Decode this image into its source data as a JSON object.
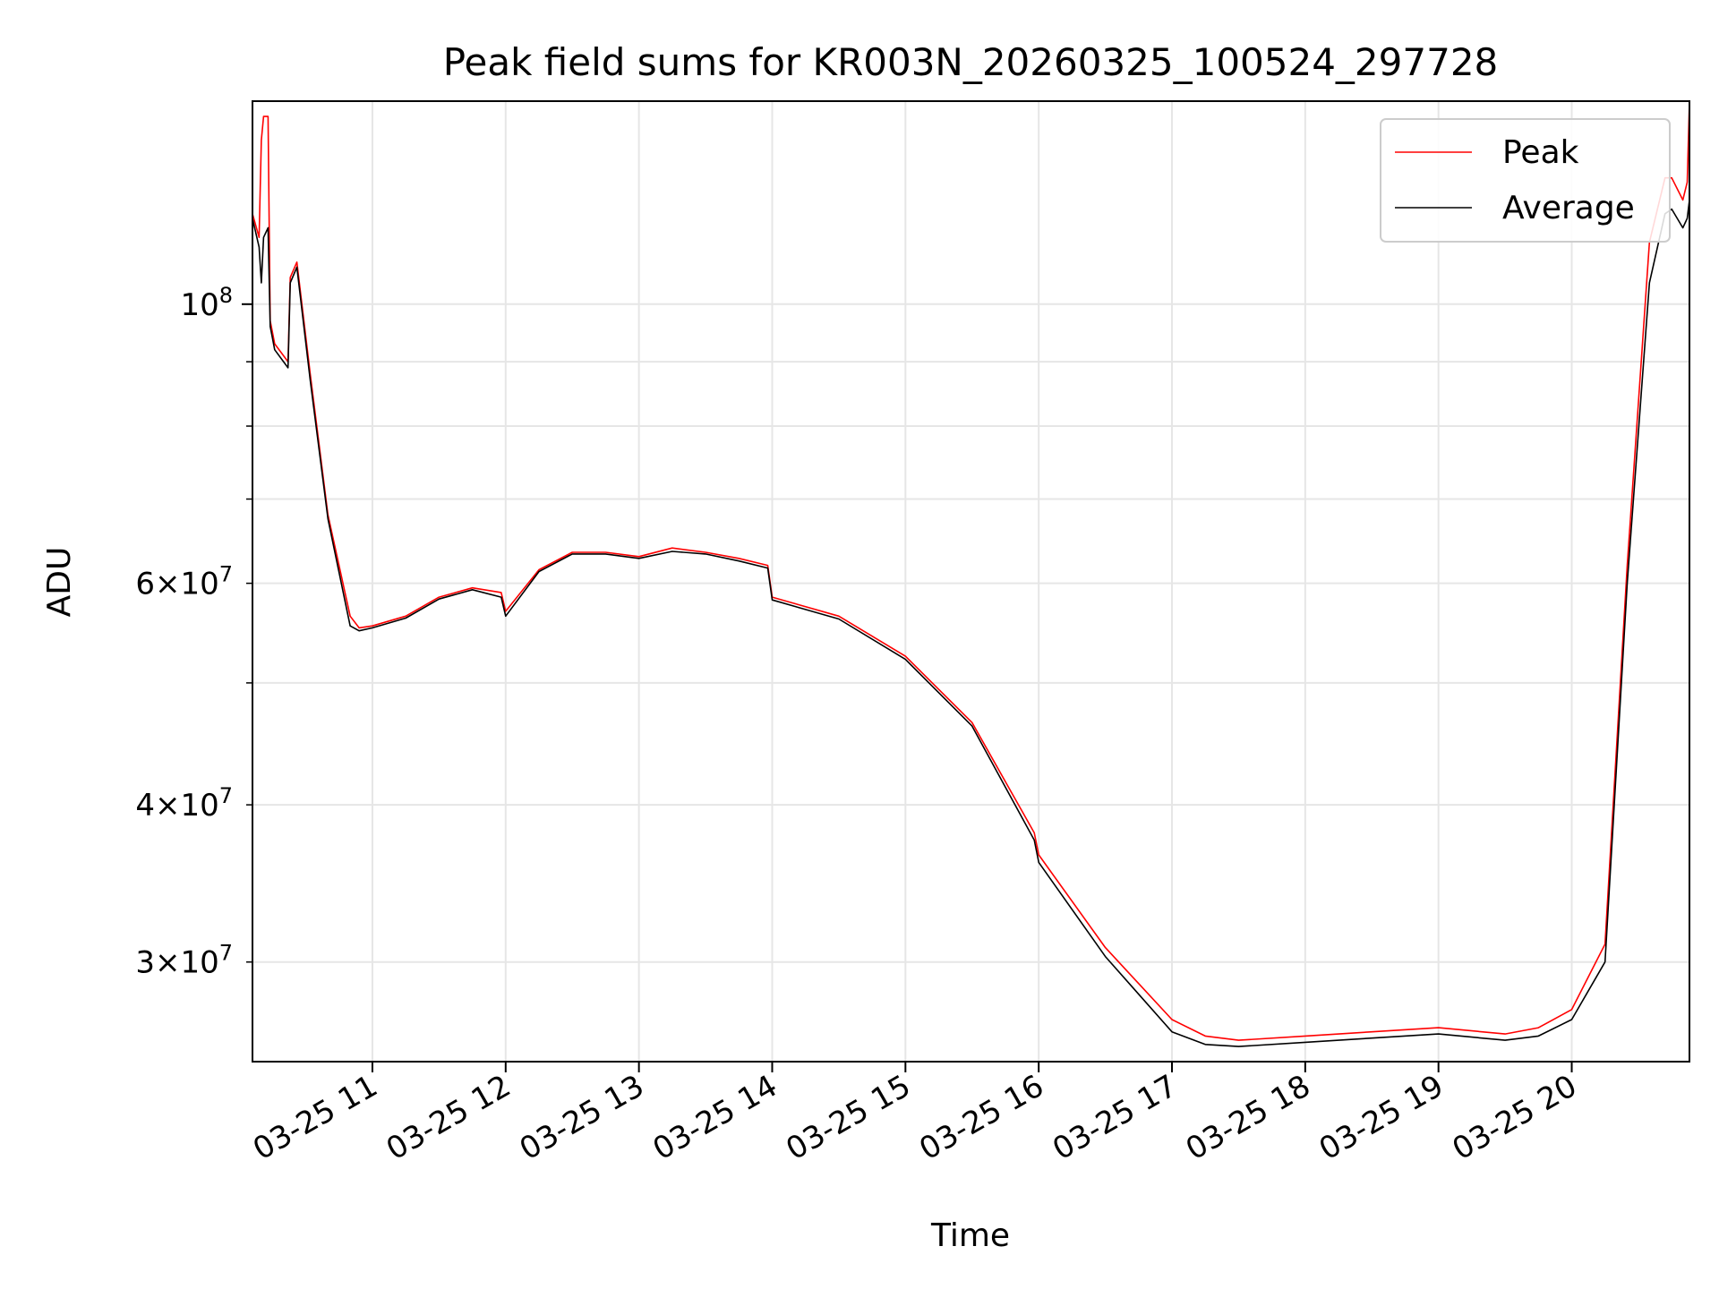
{
  "chart_data": {
    "type": "line",
    "title": "Peak field sums for KR003N_20260325_100524_297728",
    "xlabel": "Time",
    "ylabel": "ADU",
    "yscale": "log",
    "grid": true,
    "legend_position": "top-right",
    "xlim": [
      "2026-03-25T10:06",
      "2026-03-25T20:53"
    ],
    "ylim": [
      25000000,
      145000000
    ],
    "x_ticks": [
      {
        "value": "2026-03-25T11:00",
        "label": "03-25 11"
      },
      {
        "value": "2026-03-25T12:00",
        "label": "03-25 12"
      },
      {
        "value": "2026-03-25T13:00",
        "label": "03-25 13"
      },
      {
        "value": "2026-03-25T14:00",
        "label": "03-25 14"
      },
      {
        "value": "2026-03-25T15:00",
        "label": "03-25 15"
      },
      {
        "value": "2026-03-25T16:00",
        "label": "03-25 16"
      },
      {
        "value": "2026-03-25T17:00",
        "label": "03-25 17"
      },
      {
        "value": "2026-03-25T18:00",
        "label": "03-25 18"
      },
      {
        "value": "2026-03-25T19:00",
        "label": "03-25 19"
      },
      {
        "value": "2026-03-25T20:00",
        "label": "03-25 20"
      }
    ],
    "y_major_ticks": [
      {
        "value": 100000000,
        "base": "10",
        "exp": "8"
      }
    ],
    "y_minor_tick_labels": [
      {
        "value": 60000000,
        "mant": "6",
        "base": "10",
        "exp": "7"
      },
      {
        "value": 40000000,
        "mant": "4",
        "base": "10",
        "exp": "7"
      },
      {
        "value": 30000000,
        "mant": "3",
        "base": "10",
        "exp": "7"
      }
    ],
    "y_minor_ticks": [
      30000000,
      40000000,
      50000000,
      60000000,
      70000000,
      80000000,
      90000000
    ],
    "series": [
      {
        "name": "Peak",
        "color": "#ff0000",
        "x": [
          "2026-03-25T10:06",
          "2026-03-25T10:09",
          "2026-03-25T10:10",
          "2026-03-25T10:11",
          "2026-03-25T10:13",
          "2026-03-25T10:14",
          "2026-03-25T10:15",
          "2026-03-25T10:16",
          "2026-03-25T10:22",
          "2026-03-25T10:23",
          "2026-03-25T10:26",
          "2026-03-25T10:32",
          "2026-03-25T10:40",
          "2026-03-25T10:50",
          "2026-03-25T10:54",
          "2026-03-25T11:00",
          "2026-03-25T11:15",
          "2026-03-25T11:30",
          "2026-03-25T11:45",
          "2026-03-25T11:58",
          "2026-03-25T12:00",
          "2026-03-25T12:15",
          "2026-03-25T12:30",
          "2026-03-25T12:45",
          "2026-03-25T13:00",
          "2026-03-25T13:15",
          "2026-03-25T13:30",
          "2026-03-25T13:45",
          "2026-03-25T13:58",
          "2026-03-25T14:00",
          "2026-03-25T14:30",
          "2026-03-25T15:00",
          "2026-03-25T15:30",
          "2026-03-25T15:58",
          "2026-03-25T16:00",
          "2026-03-25T16:30",
          "2026-03-25T17:00",
          "2026-03-25T17:15",
          "2026-03-25T17:30",
          "2026-03-25T18:00",
          "2026-03-25T18:30",
          "2026-03-25T19:00",
          "2026-03-25T19:30",
          "2026-03-25T19:45",
          "2026-03-25T20:00",
          "2026-03-25T20:15",
          "2026-03-25T20:25",
          "2026-03-25T20:35",
          "2026-03-25T20:42",
          "2026-03-25T20:45",
          "2026-03-25T20:50",
          "2026-03-25T20:52",
          "2026-03-25T20:53"
        ],
        "values": [
          118000000,
          113000000,
          135000000,
          141000000,
          141000000,
          97000000,
          95000000,
          93000000,
          90000000,
          105000000,
          108000000,
          88000000,
          68000000,
          56500000,
          55300000,
          55500000,
          56500000,
          58500000,
          59500000,
          59000000,
          57000000,
          61500000,
          63500000,
          63500000,
          63000000,
          64000000,
          63500000,
          62800000,
          62000000,
          58500000,
          56500000,
          52500000,
          46500000,
          38000000,
          36500000,
          30800000,
          27000000,
          26200000,
          26000000,
          26200000,
          26400000,
          26600000,
          26300000,
          26600000,
          27500000,
          31000000,
          62000000,
          112000000,
          126000000,
          126000000,
          121000000,
          125000000,
          145000000
        ]
      },
      {
        "name": "Average",
        "color": "#000000",
        "x": [
          "2026-03-25T10:06",
          "2026-03-25T10:09",
          "2026-03-25T10:10",
          "2026-03-25T10:11",
          "2026-03-25T10:13",
          "2026-03-25T10:14",
          "2026-03-25T10:15",
          "2026-03-25T10:16",
          "2026-03-25T10:22",
          "2026-03-25T10:23",
          "2026-03-25T10:26",
          "2026-03-25T10:32",
          "2026-03-25T10:40",
          "2026-03-25T10:50",
          "2026-03-25T10:54",
          "2026-03-25T11:00",
          "2026-03-25T11:15",
          "2026-03-25T11:30",
          "2026-03-25T11:45",
          "2026-03-25T11:58",
          "2026-03-25T12:00",
          "2026-03-25T12:15",
          "2026-03-25T12:30",
          "2026-03-25T12:45",
          "2026-03-25T13:00",
          "2026-03-25T13:15",
          "2026-03-25T13:30",
          "2026-03-25T13:45",
          "2026-03-25T13:58",
          "2026-03-25T14:00",
          "2026-03-25T14:30",
          "2026-03-25T15:00",
          "2026-03-25T15:30",
          "2026-03-25T15:58",
          "2026-03-25T16:00",
          "2026-03-25T16:30",
          "2026-03-25T17:00",
          "2026-03-25T17:15",
          "2026-03-25T17:30",
          "2026-03-25T18:00",
          "2026-03-25T18:30",
          "2026-03-25T19:00",
          "2026-03-25T19:30",
          "2026-03-25T19:45",
          "2026-03-25T20:00",
          "2026-03-25T20:15",
          "2026-03-25T20:25",
          "2026-03-25T20:35",
          "2026-03-25T20:42",
          "2026-03-25T20:45",
          "2026-03-25T20:50",
          "2026-03-25T20:52",
          "2026-03-25T20:53"
        ],
        "values": [
          117000000,
          111000000,
          104000000,
          113000000,
          115000000,
          96000000,
          94000000,
          92000000,
          89000000,
          104000000,
          107000000,
          87000000,
          67500000,
          55500000,
          55000000,
          55300000,
          56300000,
          58300000,
          59300000,
          58500000,
          56500000,
          61300000,
          63300000,
          63300000,
          62800000,
          63600000,
          63300000,
          62500000,
          61700000,
          58200000,
          56200000,
          52200000,
          46200000,
          37500000,
          36000000,
          30300000,
          26400000,
          25800000,
          25700000,
          25900000,
          26100000,
          26300000,
          26000000,
          26200000,
          27000000,
          30000000,
          60000000,
          104000000,
          118000000,
          119000000,
          115000000,
          117000000,
          121000000
        ]
      }
    ]
  }
}
